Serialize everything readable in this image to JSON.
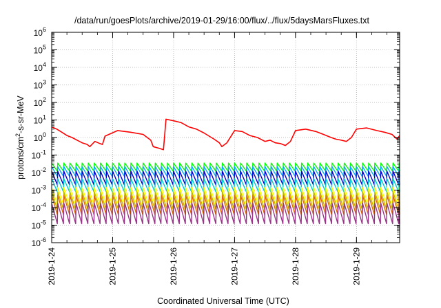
{
  "chart_data": {
    "type": "line",
    "title": "/data/run/goesPlots/archive/2019-01-29/16:00/flux/../flux/5daysMarsFluxes.txt",
    "xlabel": "Coordinated Universal Time (UTC)",
    "ylabel_base": "protons/cm",
    "ylabel_sup": "2",
    "ylabel_tail": "-s-sr-MeV",
    "x_range": [
      "2019-01-24T00:00",
      "2019-01-29T17:00"
    ],
    "x_ticks": [
      "2019-1-24",
      "2019-1-25",
      "2019-1-26",
      "2019-1-27",
      "2019-1-28",
      "2019-1-29"
    ],
    "y_scale": "log",
    "y_range": [
      1e-06,
      1000000.0
    ],
    "y_ticks": [
      {
        "base": "10",
        "exp": "-6"
      },
      {
        "base": "10",
        "exp": "-5"
      },
      {
        "base": "10",
        "exp": "-4"
      },
      {
        "base": "10",
        "exp": "-3"
      },
      {
        "base": "10",
        "exp": "-2"
      },
      {
        "base": "10",
        "exp": "-1"
      },
      {
        "base": "10",
        "exp": "0"
      },
      {
        "base": "10",
        "exp": "1"
      },
      {
        "base": "10",
        "exp": "2"
      },
      {
        "base": "10",
        "exp": "3"
      },
      {
        "base": "10",
        "exp": "4"
      },
      {
        "base": "10",
        "exp": "5"
      },
      {
        "base": "10",
        "exp": "6"
      }
    ],
    "grid": true,
    "legend": "none",
    "series": [
      {
        "color": "#ff0000",
        "x": [
          "2019-01-24T00:00",
          "2019-01-24T02:00",
          "2019-01-24T04:00",
          "2019-01-24T06:00",
          "2019-01-24T08:00",
          "2019-01-24T10:00",
          "2019-01-24T12:00",
          "2019-01-24T14:00",
          "2019-01-24T15:00",
          "2019-01-24T17:00",
          "2019-01-24T19:00",
          "2019-01-24T20:00",
          "2019-01-24T21:00",
          "2019-01-25T02:00",
          "2019-01-25T07:00",
          "2019-01-25T12:00",
          "2019-01-25T15:00",
          "2019-01-25T16:00",
          "2019-01-25T18:00",
          "2019-01-25T20:00",
          "2019-01-25T21:00",
          "2019-01-26T00:00",
          "2019-01-26T03:00",
          "2019-01-26T06:00",
          "2019-01-26T09:00",
          "2019-01-26T12:00",
          "2019-01-26T14:00",
          "2019-01-26T16:00",
          "2019-01-26T18:00",
          "2019-01-26T19:00",
          "2019-01-26T21:00",
          "2019-01-27T00:00",
          "2019-01-27T03:00",
          "2019-01-27T06:00",
          "2019-01-27T09:00",
          "2019-01-27T12:00",
          "2019-01-27T14:00",
          "2019-01-27T16:00",
          "2019-01-27T18:00",
          "2019-01-27T20:00",
          "2019-01-27T22:00",
          "2019-01-28T00:00",
          "2019-01-28T04:00",
          "2019-01-28T08:00",
          "2019-01-28T11:00",
          "2019-01-28T14:00",
          "2019-01-28T16:00",
          "2019-01-28T18:00",
          "2019-01-28T20:00",
          "2019-01-28T22:00",
          "2019-01-29T00:00",
          "2019-01-29T04:00",
          "2019-01-29T08:00",
          "2019-01-29T11:00",
          "2019-01-29T14:00",
          "2019-01-29T16:00",
          "2019-01-29T17:00"
        ],
        "y": [
          4,
          3,
          2,
          1.3,
          1,
          0.7,
          0.5,
          0.4,
          0.3,
          0.6,
          0.45,
          0.4,
          1.2,
          2.5,
          2,
          1.5,
          0.7,
          0.3,
          0.25,
          0.2,
          11,
          9,
          7,
          4,
          3,
          1.8,
          1.2,
          0.8,
          0.5,
          0.3,
          0.5,
          2.5,
          2.2,
          1.3,
          1,
          0.6,
          0.7,
          0.5,
          0.45,
          0.35,
          0.6,
          2.5,
          3,
          2.2,
          1.5,
          1,
          0.8,
          0.7,
          0.6,
          1,
          3,
          3.5,
          2.5,
          2,
          1.5,
          0.8,
          1.3
        ]
      },
      {
        "color": "#00ff00",
        "low": 0.012,
        "high": 0.035
      },
      {
        "color": "#00aaff",
        "low": 0.006,
        "high": 0.022
      },
      {
        "color": "#0000cc",
        "low": 0.002,
        "high": 0.012
      },
      {
        "color": "#00cccc",
        "low": 0.0008,
        "high": 0.0045
      },
      {
        "color": "#ffff00",
        "low": 0.00015,
        "high": 0.0014
      },
      {
        "color": "#bbbb00",
        "low": 8e-05,
        "high": 0.0008
      },
      {
        "color": "#dd6600",
        "low": 4e-05,
        "high": 0.0005
      },
      {
        "color": "#993388",
        "low": 1.2e-05,
        "high": 0.00018
      }
    ],
    "sawtooth_period_hours": 2.4
  }
}
